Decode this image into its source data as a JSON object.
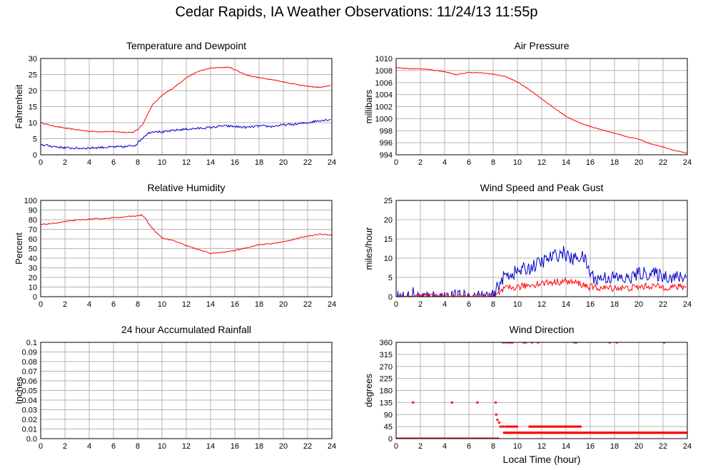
{
  "page_title": "Cedar Rapids, IA Weather Observations: 11/24/13 11:55p",
  "colors": {
    "red": "#ff0000",
    "blue": "#0000cc",
    "grid": "#b4b4b4",
    "frame": "#000000"
  },
  "chart_data": [
    {
      "type": "line",
      "title": "Temperature and Dewpoint",
      "ylabel": "Fahrenheit",
      "xlabel": "",
      "xlim": [
        0,
        24
      ],
      "ylim": [
        0,
        30
      ],
      "xticks": [
        0,
        2,
        4,
        6,
        8,
        10,
        12,
        14,
        16,
        18,
        20,
        22,
        24
      ],
      "yticks": [
        0,
        5,
        10,
        15,
        20,
        25,
        30
      ],
      "grid": true,
      "series": [
        {
          "color": "#ff0000",
          "noise": 0.15,
          "x": [
            0,
            1,
            2,
            3,
            4,
            5,
            6,
            7,
            7.6,
            8,
            8.4,
            8.8,
            9.2,
            9.6,
            10,
            11,
            12,
            13,
            14,
            15,
            15.5,
            16,
            17,
            18,
            19,
            20,
            21,
            22,
            23,
            23.9
          ],
          "y": [
            10,
            9,
            8.3,
            7.8,
            7.3,
            7.2,
            7.2,
            7,
            7,
            7.8,
            9.5,
            12.5,
            15.5,
            17,
            18.5,
            21,
            24,
            26,
            27,
            27.2,
            27.3,
            26.5,
            24.8,
            24,
            23.5,
            22.7,
            22,
            21.3,
            21,
            21.5
          ]
        },
        {
          "color": "#0000cc",
          "noise": 0.35,
          "x": [
            0,
            1,
            2,
            3,
            4,
            5,
            6,
            7,
            7.8,
            8.2,
            8.6,
            9,
            9.5,
            10,
            11,
            12,
            13,
            14,
            15,
            16,
            17,
            18,
            19,
            20,
            21,
            22,
            23,
            23.9
          ],
          "y": [
            3.2,
            2.6,
            2.2,
            2,
            2.1,
            2.3,
            2.4,
            2.5,
            3,
            4.5,
            6,
            7,
            7.4,
            7,
            7.6,
            8,
            8.2,
            8.5,
            9,
            8.8,
            8.5,
            9,
            8.8,
            9.3,
            9.5,
            10,
            10.7,
            11
          ]
        }
      ]
    },
    {
      "type": "line",
      "title": "Air Pressure",
      "ylabel": "millibars",
      "xlabel": "",
      "xlim": [
        0,
        24
      ],
      "ylim": [
        994,
        1010
      ],
      "xticks": [
        0,
        2,
        4,
        6,
        8,
        10,
        12,
        14,
        16,
        18,
        20,
        22,
        24
      ],
      "yticks": [
        994,
        996,
        998,
        1000,
        1002,
        1004,
        1006,
        1008,
        1010
      ],
      "grid": true,
      "series": [
        {
          "color": "#ff0000",
          "noise": 0.07,
          "x": [
            0,
            1,
            2,
            3,
            4,
            5,
            5.5,
            6,
            7,
            8,
            9,
            10,
            11,
            12,
            13,
            14,
            15,
            16,
            17,
            18,
            19,
            20,
            21,
            22,
            23,
            24
          ],
          "y": [
            1008.5,
            1008.3,
            1008.3,
            1008.1,
            1007.8,
            1007.3,
            1007.5,
            1007.7,
            1007.6,
            1007.4,
            1007,
            1006.1,
            1004.8,
            1003.3,
            1001.8,
            1000.4,
            999.4,
            998.7,
            998.1,
            997.6,
            997,
            996.6,
            995.8,
            995.3,
            994.7,
            994.2
          ]
        }
      ]
    },
    {
      "type": "line",
      "title": "Relative Humidity",
      "ylabel": "Percent",
      "xlabel": "",
      "xlim": [
        0,
        24
      ],
      "ylim": [
        0,
        100
      ],
      "xticks": [
        0,
        2,
        4,
        6,
        8,
        10,
        12,
        14,
        16,
        18,
        20,
        22,
        24
      ],
      "yticks": [
        0,
        10,
        20,
        30,
        40,
        50,
        60,
        70,
        80,
        90,
        100
      ],
      "grid": true,
      "series": [
        {
          "color": "#ff0000",
          "noise": 0.5,
          "x": [
            0,
            1,
            2,
            3,
            4,
            5,
            6,
            7,
            7.5,
            8,
            8.3,
            8.6,
            9,
            9.5,
            10,
            11,
            12,
            13,
            14,
            15,
            16,
            17,
            18,
            19,
            20,
            21,
            22,
            23,
            24
          ],
          "y": [
            75,
            76,
            78,
            79.5,
            80.5,
            81,
            82,
            83,
            83.5,
            84,
            85,
            82,
            74,
            67,
            61,
            58,
            53,
            49,
            45,
            46,
            48,
            51,
            54,
            55,
            57,
            60,
            63,
            65,
            64
          ]
        }
      ]
    },
    {
      "type": "line",
      "title": "Wind Speed and Peak Gust",
      "ylabel": "miles/hour",
      "xlabel": "",
      "xlim": [
        0,
        24
      ],
      "ylim": [
        0,
        25
      ],
      "xticks": [
        0,
        2,
        4,
        6,
        8,
        10,
        12,
        14,
        16,
        18,
        20,
        22,
        24
      ],
      "yticks": [
        0,
        5,
        10,
        15,
        20,
        25
      ],
      "grid": true,
      "series": [
        {
          "color": "#0000cc",
          "noise": 1.8,
          "x": [
            0,
            1.3,
            1.4,
            1.5,
            4.4,
            4.5,
            4.6,
            6.6,
            6.7,
            6.8,
            8.1,
            8.4,
            9,
            10,
            11,
            12,
            13,
            13.8,
            14.5,
            15,
            15.5,
            16,
            16.5,
            17,
            18,
            19,
            20,
            21,
            22,
            23,
            23.9
          ],
          "y": [
            0,
            0,
            1,
            0,
            0,
            1,
            0,
            0,
            1,
            0,
            0,
            3,
            5.5,
            6.5,
            7.5,
            9,
            10.5,
            11.5,
            9.5,
            10.5,
            10,
            6,
            4.5,
            5,
            5,
            4.5,
            6,
            6,
            5.5,
            5,
            5
          ]
        },
        {
          "color": "#ff0000",
          "noise": 0.9,
          "x": [
            0,
            8.2,
            8.5,
            9,
            10,
            11,
            12,
            13,
            14,
            15,
            16,
            17,
            18,
            19,
            20,
            21,
            22,
            23,
            23.9
          ],
          "y": [
            0,
            0,
            1,
            2,
            2.5,
            3,
            3.5,
            3.8,
            4,
            3.5,
            2.5,
            2.2,
            2.3,
            2.2,
            2.5,
            2.8,
            2.5,
            2.5,
            2.5
          ]
        }
      ]
    },
    {
      "type": "line",
      "title": "24 hour Accumulated Rainfall",
      "ylabel": "Inches",
      "xlabel": "",
      "xlim": [
        0,
        24
      ],
      "ylim": [
        0,
        0.1
      ],
      "xticks": [
        0,
        2,
        4,
        6,
        8,
        10,
        12,
        14,
        16,
        18,
        20,
        22,
        24
      ],
      "yticks": [
        "0.0",
        "0.01",
        "0.02",
        "0.03",
        "0.04",
        "0.05",
        "0.06",
        "0.07",
        "0.08",
        "0.09",
        "0.1"
      ],
      "grid": true,
      "series": [
        {
          "color": "#ff0000",
          "noise": 0,
          "x": [
            0,
            24
          ],
          "y": [
            0,
            0
          ]
        }
      ]
    },
    {
      "type": "scatter",
      "title": "Wind Direction",
      "ylabel": "degrees",
      "xlabel": "Local Time (hour)",
      "xlim": [
        0,
        24
      ],
      "ylim": [
        0,
        360
      ],
      "xticks": [
        0,
        2,
        4,
        6,
        8,
        10,
        12,
        14,
        16,
        18,
        20,
        22,
        24
      ],
      "yticks": [
        0,
        45,
        90,
        135,
        180,
        225,
        270,
        315,
        360
      ],
      "grid": true,
      "segments": [
        {
          "x0": 0,
          "x1": 8.4,
          "y": 0,
          "step": 0.1
        },
        {
          "x0": 8.9,
          "x1": 24,
          "y": 22,
          "step": 0.08
        },
        {
          "x0": 9.0,
          "x1": 10.0,
          "y": 45,
          "step": 0.16
        },
        {
          "x0": 11.0,
          "x1": 15.3,
          "y": 45,
          "step": 0.12
        }
      ],
      "points": [
        {
          "x": 1.4,
          "y": 135
        },
        {
          "x": 4.6,
          "y": 135
        },
        {
          "x": 6.7,
          "y": 135
        },
        {
          "x": 8.2,
          "y": 135
        },
        {
          "x": 8.25,
          "y": 90
        },
        {
          "x": 8.35,
          "y": 70
        },
        {
          "x": 8.5,
          "y": 60
        },
        {
          "x": 8.6,
          "y": 45
        },
        {
          "x": 8.8,
          "y": 45
        },
        {
          "x": 8.8,
          "y": 360
        },
        {
          "x": 9.0,
          "y": 360
        },
        {
          "x": 9.2,
          "y": 360
        },
        {
          "x": 9.3,
          "y": 360
        },
        {
          "x": 9.45,
          "y": 360
        },
        {
          "x": 9.6,
          "y": 360
        },
        {
          "x": 10.5,
          "y": 360
        },
        {
          "x": 10.6,
          "y": 360
        },
        {
          "x": 10.7,
          "y": 360
        },
        {
          "x": 11.2,
          "y": 360
        },
        {
          "x": 11.7,
          "y": 360
        },
        {
          "x": 14.7,
          "y": 360
        },
        {
          "x": 14.85,
          "y": 360
        },
        {
          "x": 17.6,
          "y": 360
        },
        {
          "x": 18.2,
          "y": 360
        },
        {
          "x": 22.1,
          "y": 360
        }
      ]
    }
  ]
}
